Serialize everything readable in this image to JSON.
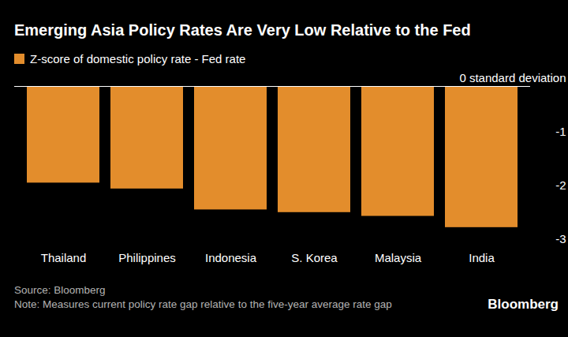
{
  "chart_data": {
    "type": "bar",
    "title": "Emerging Asia Policy Rates Are Very Low Relative to the Fed",
    "categories": [
      "Thailand",
      "Philippines",
      "Indonesia",
      "S. Korea",
      "Malaysia",
      "India"
    ],
    "series": [
      {
        "name": "Z-score of domestic policy rate - Fed rate",
        "color": "#e38d2c",
        "values": [
          -1.8,
          -1.91,
          -2.3,
          -2.35,
          -2.42,
          -2.63
        ]
      }
    ],
    "ylim": [
      -3,
      0
    ],
    "yticks": [
      {
        "value": 0,
        "label": "0 standard deviation"
      },
      -1,
      -2,
      -3
    ],
    "grid": false,
    "legend": "top-left",
    "caption": [
      "Source: Bloomberg",
      "Note: Measures current policy rate gap relative to the five-year average rate gap"
    ],
    "logo": "Bloomberg"
  }
}
